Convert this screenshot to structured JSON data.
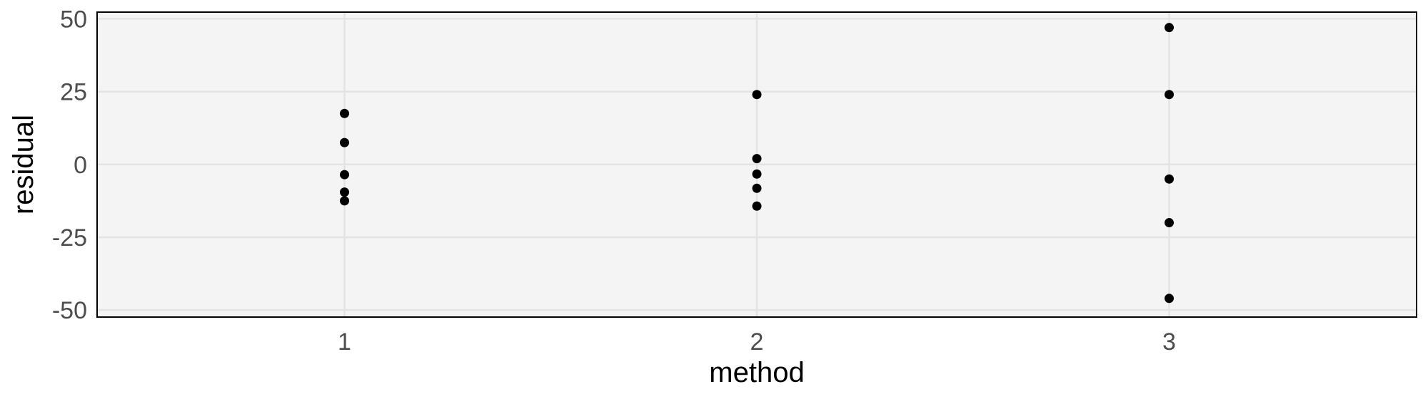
{
  "chart_data": {
    "type": "scatter",
    "xlabel": "method",
    "ylabel": "residual",
    "categories": [
      "1",
      "2",
      "3"
    ],
    "ylim": [
      -50,
      50
    ],
    "yticks": [
      50,
      25,
      0,
      -25,
      -50
    ],
    "yticks_labels": [
      "50",
      "25",
      "0",
      "-25",
      "-50"
    ],
    "grid": true,
    "points": [
      {
        "x": "1",
        "y": 17.5
      },
      {
        "x": "1",
        "y": 7.5
      },
      {
        "x": "1",
        "y": -3.5
      },
      {
        "x": "1",
        "y": -9.5
      },
      {
        "x": "1",
        "y": -12.5
      },
      {
        "x": "2",
        "y": 24
      },
      {
        "x": "2",
        "y": 2
      },
      {
        "x": "2",
        "y": -3.3
      },
      {
        "x": "2",
        "y": -8.2
      },
      {
        "x": "2",
        "y": -14.3
      },
      {
        "x": "3",
        "y": 47
      },
      {
        "x": "3",
        "y": 24
      },
      {
        "x": "3",
        "y": -5
      },
      {
        "x": "3",
        "y": -20
      },
      {
        "x": "3",
        "y": -46
      }
    ],
    "colors": {
      "panel": "#f4f4f4",
      "grid": "#e3e3e3",
      "point": "#000000",
      "border": "#000000"
    }
  }
}
